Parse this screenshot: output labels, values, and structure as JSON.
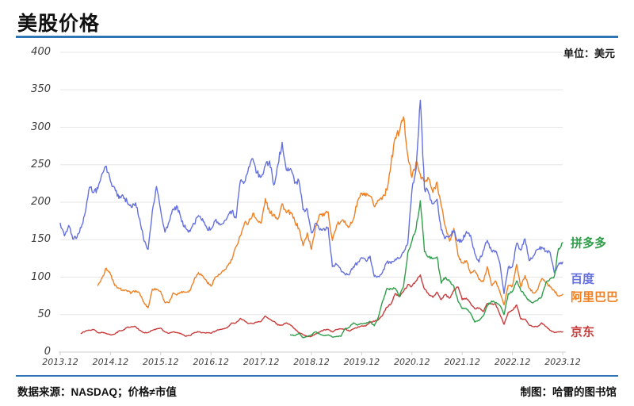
{
  "header": {
    "title": "美股价格",
    "unit_label": "单位：美元"
  },
  "footer": {
    "source": "数据来源：NASDAQ；价格≠市值",
    "credit": "制图：哈雷的图书馆"
  },
  "colors": {
    "rule_blue": "#2e75b6",
    "grid": "#e6e6e6",
    "axis": "#cfcfcf"
  },
  "chart_data": {
    "type": "line",
    "title": "美股价格",
    "unit": "美元",
    "x_axis": {
      "tick_labels": [
        "2013.12",
        "2014.12",
        "2015.12",
        "2016.12",
        "2017.12",
        "2018.12",
        "2019.12",
        "2020.12",
        "2021.12",
        "2022.12",
        "2023.12"
      ],
      "months_span": 120
    },
    "y_axis": {
      "min": 0,
      "max": 400,
      "step": 50,
      "tick_labels": [
        "0",
        "50",
        "100",
        "150",
        "200",
        "250",
        "300",
        "350",
        "400"
      ]
    },
    "series": [
      {
        "name": "阿里巴巴",
        "color": "#ef8023",
        "start_month_offset": 9,
        "monthly_values": [
          89,
          99,
          112,
          104,
          89,
          85,
          83,
          81,
          79,
          82,
          78,
          66,
          59,
          84,
          84,
          81,
          66,
          66,
          79,
          77,
          81,
          80,
          82,
          97,
          106,
          102,
          94,
          88,
          100,
          103,
          108,
          115,
          123,
          141,
          155,
          172,
          173,
          185,
          176,
          172,
          205,
          186,
          184,
          178,
          198,
          186,
          187,
          175,
          165,
          142,
          159,
          137,
          168,
          184,
          182,
          187,
          149,
          169,
          174,
          175,
          167,
          177,
          201,
          212,
          208,
          208,
          194,
          203,
          207,
          216,
          251,
          286,
          294,
          314,
          263,
          233,
          254,
          237,
          227,
          231,
          213,
          227,
          195,
          167,
          148,
          165,
          129,
          119,
          122,
          105,
          109,
          97,
          94,
          114,
          89,
          95,
          80,
          63,
          89,
          88,
          117,
          87,
          102,
          85,
          79,
          83,
          98,
          93,
          87,
          82,
          75,
          77
        ]
      },
      {
        "name": "百度",
        "color": "#6470de",
        "start_month_offset": 0,
        "monthly_values": [
          172,
          155,
          169,
          151,
          153,
          166,
          187,
          220,
          213,
          218,
          238,
          248,
          228,
          219,
          205,
          209,
          200,
          193,
          199,
          177,
          148,
          137,
          188,
          221,
          189,
          160,
          174,
          191,
          194,
          174,
          165,
          161,
          171,
          182,
          178,
          166,
          164,
          175,
          172,
          172,
          181,
          188,
          179,
          228,
          227,
          247,
          258,
          239,
          234,
          249,
          255,
          223,
          250,
          280,
          243,
          245,
          225,
          229,
          190,
          191,
          159,
          172,
          163,
          165,
          166,
          114,
          117,
          110,
          104,
          103,
          114,
          119,
          126,
          122,
          128,
          101,
          101,
          107,
          120,
          118,
          124,
          125,
          133,
          145,
          216,
          245,
          336,
          218,
          212,
          198,
          204,
          163,
          152,
          154,
          162,
          148,
          149,
          161,
          156,
          132,
          120,
          135,
          149,
          135,
          135,
          118,
          78,
          113,
          114,
          145,
          136,
          151,
          122,
          128,
          137,
          140,
          135,
          133,
          106,
          117,
          120
        ]
      },
      {
        "name": "京东",
        "color": "#c83c3c",
        "start_month_offset": 5,
        "monthly_values": [
          25,
          28,
          29,
          30,
          26,
          26,
          25,
          23,
          24,
          28,
          29,
          33,
          34,
          34,
          29,
          26,
          26,
          29,
          31,
          32,
          27,
          25,
          27,
          26,
          24,
          21,
          22,
          26,
          27,
          26,
          26,
          25,
          28,
          30,
          31,
          33,
          39,
          39,
          45,
          42,
          38,
          38,
          40,
          41,
          48,
          44,
          41,
          36,
          36,
          39,
          36,
          31,
          26,
          23,
          21,
          21,
          24,
          27,
          30,
          30,
          27,
          30,
          31,
          31,
          28,
          31,
          33,
          35,
          35,
          40,
          41,
          43,
          49,
          60,
          64,
          78,
          74,
          81,
          90,
          88,
          95,
          103,
          84,
          77,
          73,
          80,
          70,
          77,
          72,
          82,
          87,
          70,
          72,
          65,
          58,
          59,
          54,
          65,
          64,
          64,
          50,
          37,
          53,
          56,
          63,
          44,
          44,
          36,
          34,
          34,
          39,
          34,
          29,
          26,
          27,
          27
        ]
      },
      {
        "name": "拼多多",
        "color": "#2f9e4a",
        "start_month_offset": 55,
        "monthly_values": [
          23,
          22,
          25,
          19,
          21,
          23,
          27,
          24,
          22,
          23,
          20,
          21,
          21,
          31,
          33,
          39,
          36,
          38,
          38,
          41,
          35,
          47,
          68,
          85,
          84,
          85,
          74,
          88,
          132,
          148,
          165,
          202,
          134,
          127,
          125,
          127,
          92,
          100,
          94,
          88,
          68,
          58,
          58,
          52,
          40,
          42,
          48,
          62,
          68,
          66,
          62,
          50,
          78,
          81,
          95,
          82,
          76,
          68,
          66,
          69,
          74,
          93,
          98,
          101,
          138,
          146
        ]
      }
    ],
    "legend": [
      {
        "label": "拼多多",
        "series_index": 3
      },
      {
        "label": "百度",
        "series_index": 1
      },
      {
        "label": "阿里巴巴",
        "series_index": 0
      },
      {
        "label": "京东",
        "series_index": 2
      }
    ]
  }
}
